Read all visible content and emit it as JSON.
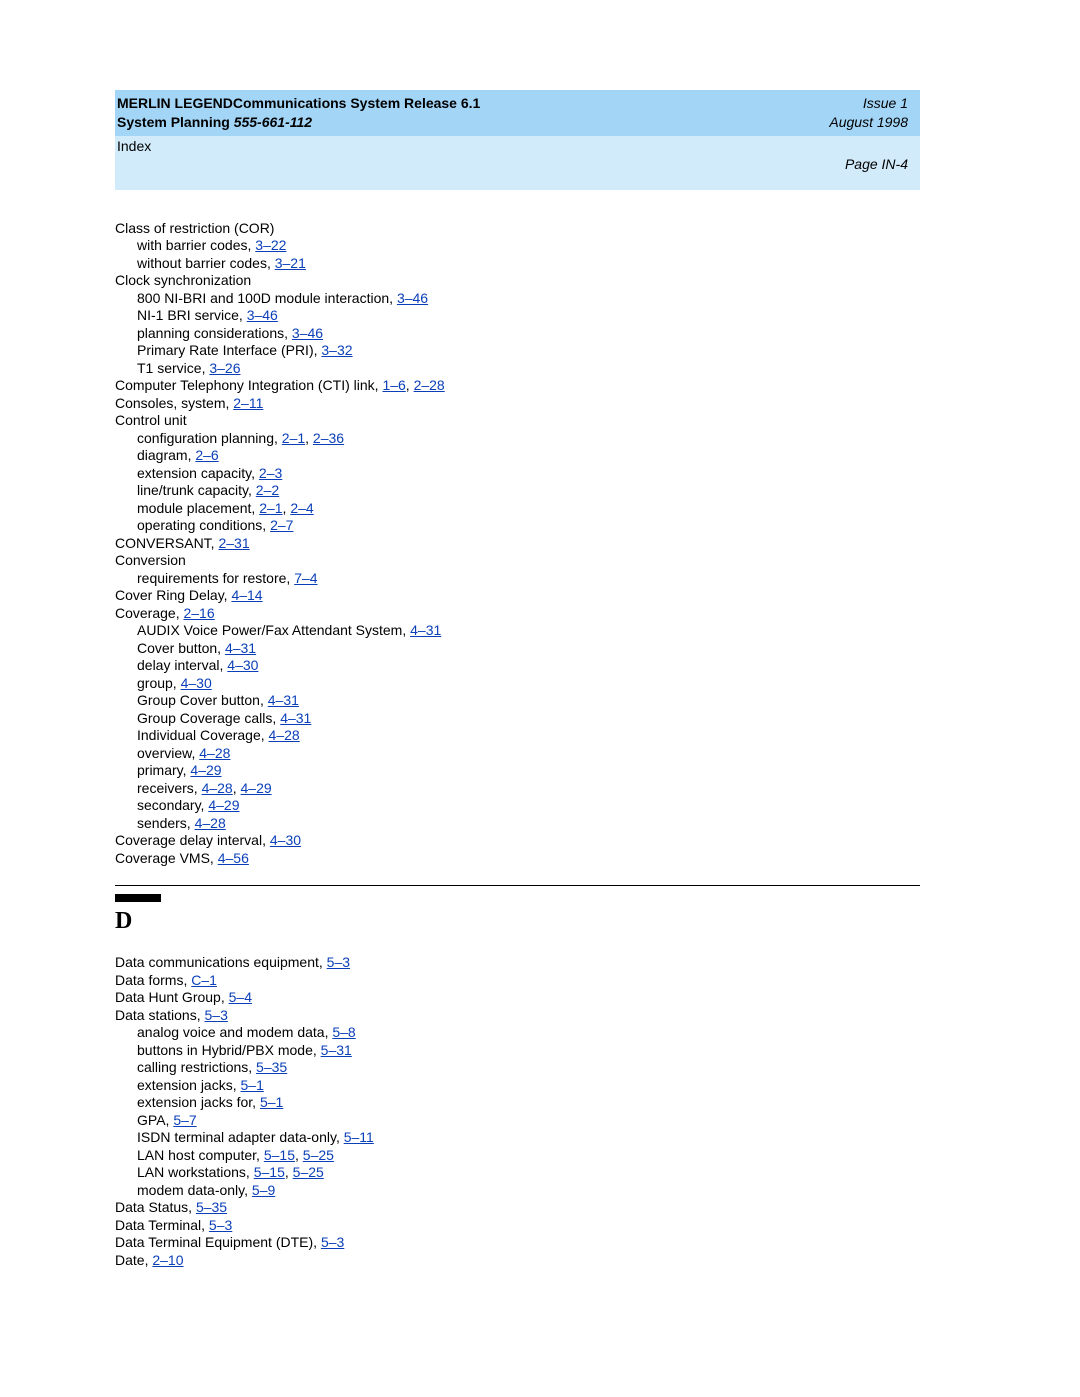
{
  "colors": {
    "header_bg": "#a3d5f7",
    "subheader_bg": "#d2ebfb",
    "link_color": "#0a3fb8",
    "text_color": "#000000"
  },
  "typography": {
    "body_font": "Arial",
    "body_size_pt": 11,
    "letter_font": "Times New Roman",
    "letter_size_pt": 18
  },
  "header": {
    "title_line1a": "MERLIN LEGEND",
    "title_line1b": "Communications System Release 6.1",
    "title_line2": "System Planning",
    "docnum": "555-661-112",
    "issue": "Issue 1",
    "date": "August 1998"
  },
  "subheader": {
    "section": "Index",
    "page": "Page IN-4"
  },
  "sections": [
    {
      "entries": [
        {
          "text": "Class of restriction (COR)",
          "indent": 0,
          "links": []
        },
        {
          "text": "with barrier codes,",
          "indent": 1,
          "links": [
            "3–22"
          ]
        },
        {
          "text": "without barrier codes,",
          "indent": 1,
          "links": [
            "3–21"
          ]
        },
        {
          "text": "Clock synchronization",
          "indent": 0,
          "links": []
        },
        {
          "text": "800 NI-BRI and 100D module interaction,",
          "indent": 1,
          "links": [
            "3–46"
          ]
        },
        {
          "text": "NI-1 BRI service,",
          "indent": 1,
          "links": [
            "3–46"
          ]
        },
        {
          "text": "planning considerations,",
          "indent": 1,
          "links": [
            "3–46"
          ]
        },
        {
          "text": "Primary Rate Interface (PRI),",
          "indent": 1,
          "links": [
            "3–32"
          ]
        },
        {
          "text": "T1 service,",
          "indent": 1,
          "links": [
            "3–26"
          ]
        },
        {
          "text": "Computer Telephony Integration (CTI) link,",
          "indent": 0,
          "links": [
            "1–6",
            "2–28"
          ]
        },
        {
          "text": "Consoles, system,",
          "indent": 0,
          "links": [
            "2–11"
          ]
        },
        {
          "text": "Control unit",
          "indent": 0,
          "links": []
        },
        {
          "text": "configuration planning,",
          "indent": 1,
          "links": [
            "2–1",
            "2–36"
          ]
        },
        {
          "text": "diagram,",
          "indent": 1,
          "links": [
            "2–6"
          ]
        },
        {
          "text": "extension capacity,",
          "indent": 1,
          "links": [
            "2–3"
          ]
        },
        {
          "text": "line/trunk capacity,",
          "indent": 1,
          "links": [
            "2–2"
          ]
        },
        {
          "text": "module placement,",
          "indent": 1,
          "links": [
            "2–1",
            "2–4"
          ]
        },
        {
          "text": "operating conditions,",
          "indent": 1,
          "links": [
            "2–7"
          ]
        },
        {
          "text": "CONVERSANT,",
          "indent": 0,
          "links": [
            "2–31"
          ]
        },
        {
          "text": "Conversion",
          "indent": 0,
          "links": []
        },
        {
          "text": "requirements for restore,",
          "indent": 1,
          "links": [
            "7–4"
          ]
        },
        {
          "text": "Cover Ring Delay,",
          "indent": 0,
          "links": [
            "4–14"
          ]
        },
        {
          "text": "Coverage,",
          "indent": 0,
          "links": [
            "2–16"
          ]
        },
        {
          "text": "AUDIX Voice Power/Fax Attendant System,",
          "indent": 1,
          "links": [
            "4–31"
          ]
        },
        {
          "text": "Cover button,",
          "indent": 1,
          "links": [
            "4–31"
          ]
        },
        {
          "text": "delay interval,",
          "indent": 1,
          "links": [
            "4–30"
          ]
        },
        {
          "text": "group,",
          "indent": 1,
          "links": [
            "4–30"
          ]
        },
        {
          "text": "Group Cover button,",
          "indent": 1,
          "links": [
            "4–31"
          ]
        },
        {
          "text": "Group Coverage calls,",
          "indent": 1,
          "links": [
            "4–31"
          ]
        },
        {
          "text": "Individual Coverage,",
          "indent": 1,
          "links": [
            "4–28"
          ]
        },
        {
          "text": "overview,",
          "indent": 1,
          "links": [
            "4–28"
          ]
        },
        {
          "text": "primary,",
          "indent": 1,
          "links": [
            "4–29"
          ]
        },
        {
          "text": "receivers,",
          "indent": 1,
          "links": [
            "4–28",
            "4–29"
          ]
        },
        {
          "text": "secondary,",
          "indent": 1,
          "links": [
            "4–29"
          ]
        },
        {
          "text": "senders,",
          "indent": 1,
          "links": [
            "4–28"
          ]
        },
        {
          "text": "Coverage delay interval,",
          "indent": 0,
          "links": [
            "4–30"
          ]
        },
        {
          "text": "Coverage VMS,",
          "indent": 0,
          "links": [
            "4–56"
          ]
        }
      ]
    },
    {
      "letter": "D",
      "entries": [
        {
          "text": "Data communications equipment,",
          "indent": 0,
          "links": [
            "5–3"
          ]
        },
        {
          "text": "Data forms,",
          "indent": 0,
          "links": [
            "C–1"
          ]
        },
        {
          "text": "Data Hunt Group,",
          "indent": 0,
          "links": [
            "5–4"
          ]
        },
        {
          "text": "Data stations,",
          "indent": 0,
          "links": [
            "5–3"
          ]
        },
        {
          "text": "analog voice and modem data,",
          "indent": 1,
          "links": [
            "5–8"
          ]
        },
        {
          "text": "buttons in Hybrid/PBX mode,",
          "indent": 1,
          "links": [
            "5–31"
          ]
        },
        {
          "text": "calling restrictions,",
          "indent": 1,
          "links": [
            "5–35"
          ]
        },
        {
          "text": "extension jacks,",
          "indent": 1,
          "links": [
            "5–1"
          ]
        },
        {
          "text": "extension jacks for,",
          "indent": 1,
          "links": [
            "5–1"
          ]
        },
        {
          "text": "GPA,",
          "indent": 1,
          "links": [
            "5–7"
          ]
        },
        {
          "text": "ISDN terminal adapter data-only,",
          "indent": 1,
          "links": [
            "5–11"
          ]
        },
        {
          "text": "LAN host computer,",
          "indent": 1,
          "links": [
            "5–15",
            "5–25"
          ]
        },
        {
          "text": "LAN workstations,",
          "indent": 1,
          "links": [
            "5–15",
            "5–25"
          ]
        },
        {
          "text": "modem data-only,",
          "indent": 1,
          "links": [
            "5–9"
          ]
        },
        {
          "text": "Data Status,",
          "indent": 0,
          "links": [
            "5–35"
          ]
        },
        {
          "text": "Data Terminal,",
          "indent": 0,
          "links": [
            "5–3"
          ]
        },
        {
          "text": "Data Terminal Equipment (DTE),",
          "indent": 0,
          "links": [
            "5–3"
          ]
        },
        {
          "text": "Date,",
          "indent": 0,
          "links": [
            "2–10"
          ]
        }
      ]
    }
  ]
}
